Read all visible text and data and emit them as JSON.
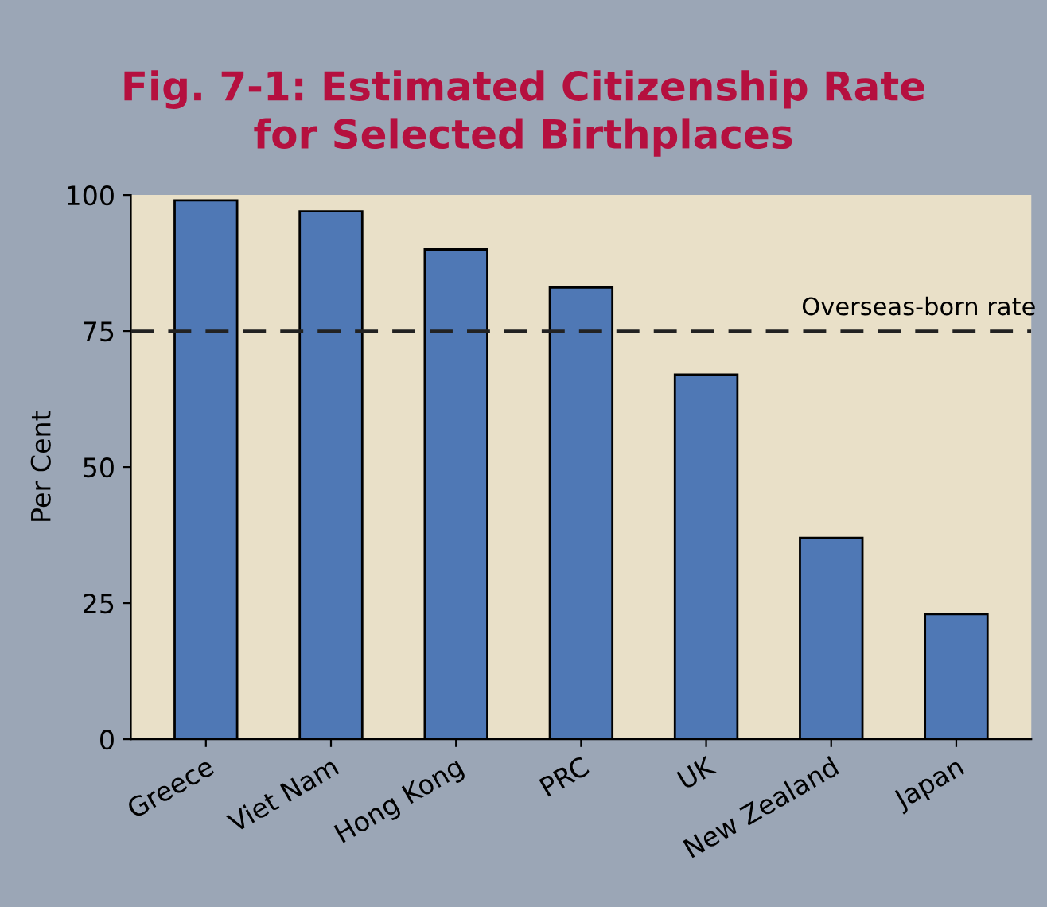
{
  "chart_data": {
    "type": "bar",
    "title": "Fig. 7-1: Estimated Citizenship Rate\nfor Selected Birthplaces",
    "ylabel": "Per Cent",
    "categories": [
      "Greece",
      "Viet Nam",
      "Hong Kong",
      "PRC",
      "UK",
      "New Zealand",
      "Japan"
    ],
    "values": [
      99,
      97,
      90,
      83,
      67,
      37,
      23
    ],
    "color": "#4f78b5",
    "ylim": [
      0,
      100
    ],
    "yticks": [
      0,
      25,
      50,
      75,
      100
    ],
    "grid": false,
    "ref_lines": [
      {
        "axis": "y",
        "value": 75,
        "label": "Overseas-born rate",
        "color": "#222222",
        "line_style": "dashed"
      }
    ]
  }
}
